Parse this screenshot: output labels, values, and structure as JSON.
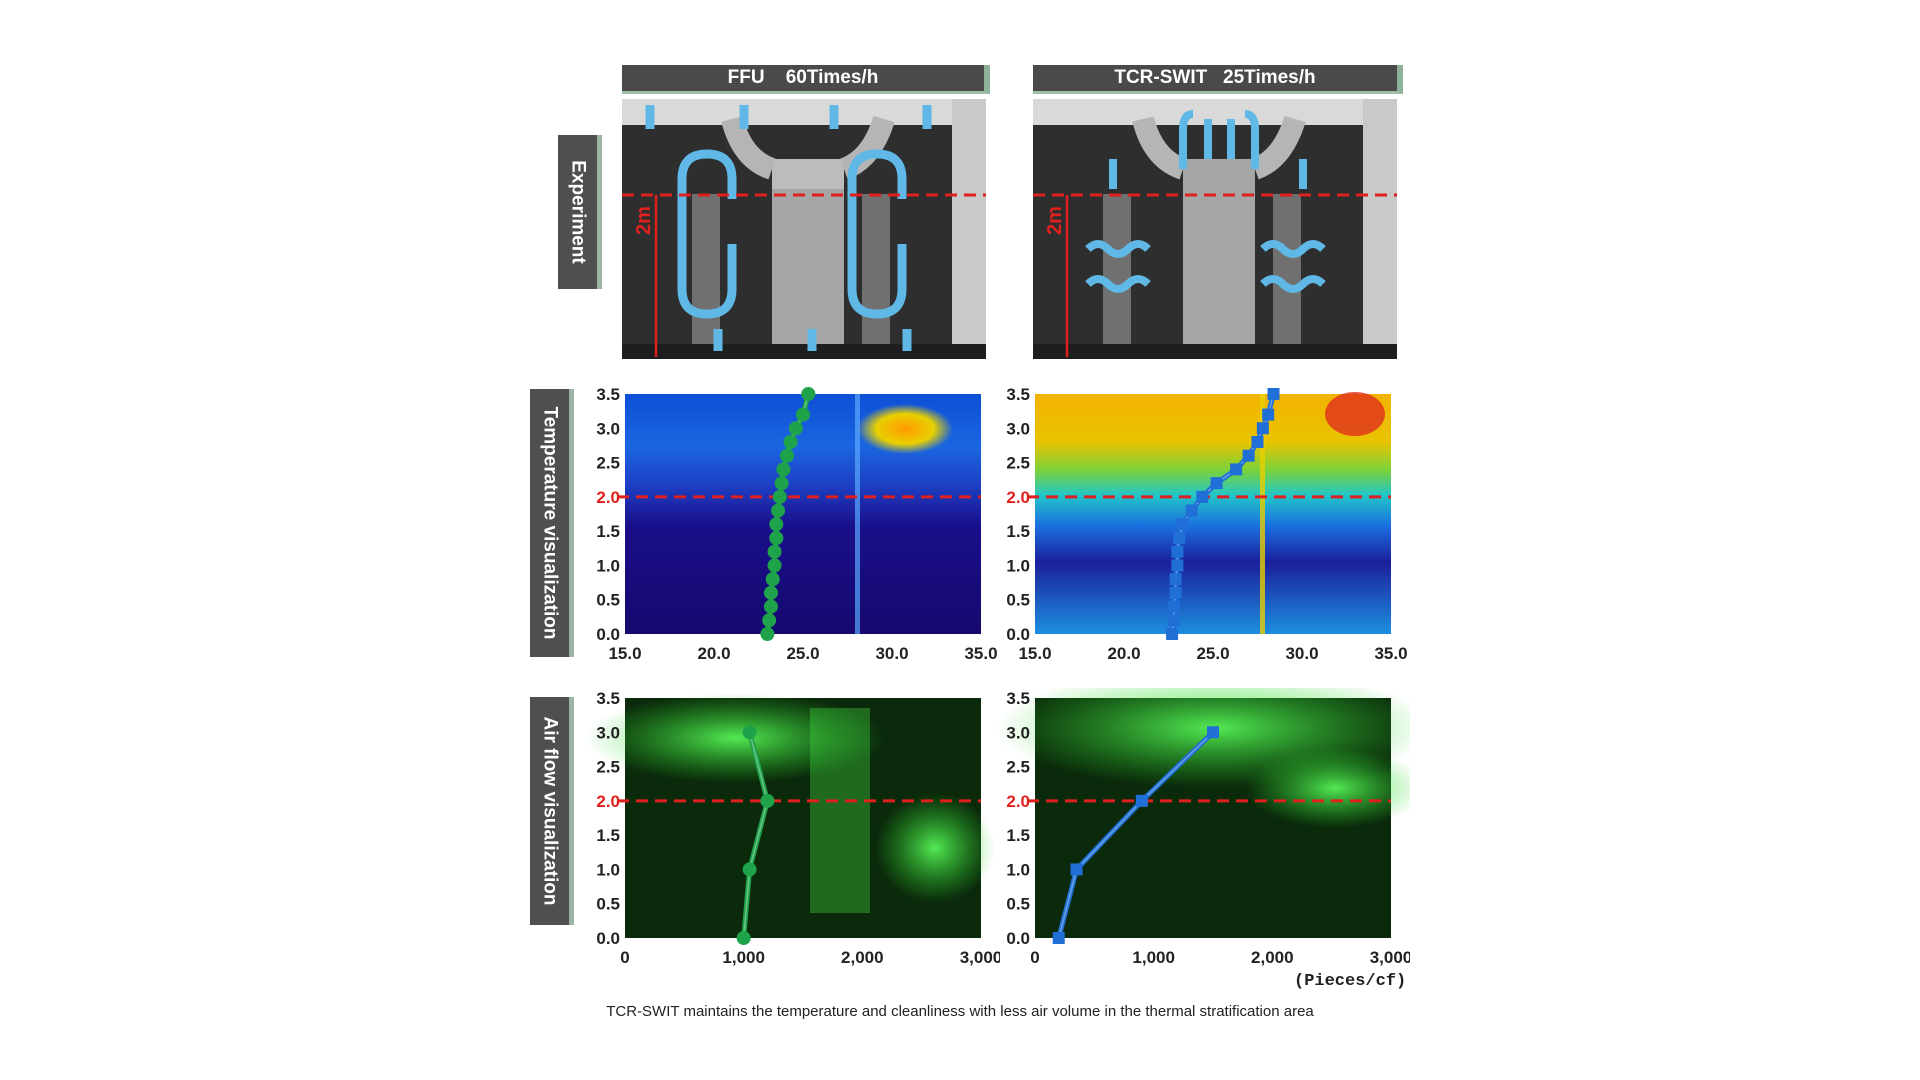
{
  "columns": [
    {
      "title": "FFU    60Times/h"
    },
    {
      "title": "TCR-SWIT   25Times/h"
    }
  ],
  "row_labels": {
    "experiment": "Experiment",
    "temperature": "Temperature visualization",
    "airflow": "Air flow visualization"
  },
  "height_marker": "2m",
  "unit_label": "(Pieces/cf)",
  "caption": "TCR-SWIT maintains the temperature and cleanliness with less air volume in the thermal stratification area",
  "colors": {
    "ffu_series": "#1fa34a",
    "tcr_series": "#1f6fd6",
    "reference_line": "#e0201c",
    "arrow": "#5fb8e6"
  },
  "chart_data": [
    {
      "type": "line",
      "panel": "FFU temperature visualization",
      "x": [
        23.0,
        23.1,
        23.2,
        23.2,
        23.3,
        23.4,
        23.4,
        23.5,
        23.5,
        23.6,
        23.7,
        23.8,
        23.9,
        24.1,
        24.3,
        24.6,
        25.0,
        25.3
      ],
      "y": [
        0.0,
        0.2,
        0.4,
        0.6,
        0.8,
        1.0,
        1.2,
        1.4,
        1.6,
        1.8,
        2.0,
        2.2,
        2.4,
        2.6,
        2.8,
        3.0,
        3.2,
        3.5
      ],
      "xlim": [
        15.0,
        35.0
      ],
      "ylim": [
        0.0,
        3.5
      ],
      "xticks": [
        "15.0",
        "20.0",
        "25.0",
        "30.0",
        "35.0"
      ],
      "yticks": [
        "0.0",
        "0.5",
        "1.0",
        "1.5",
        "2.0",
        "2.5",
        "3.0",
        "3.5"
      ],
      "reference_y": 2.0
    },
    {
      "type": "line",
      "panel": "TCR-SWIT temperature visualization",
      "x": [
        22.7,
        22.8,
        22.8,
        22.9,
        22.9,
        23.0,
        23.0,
        23.1,
        23.3,
        23.8,
        24.4,
        25.2,
        26.3,
        27.0,
        27.5,
        27.8,
        28.1,
        28.4
      ],
      "y": [
        0.0,
        0.2,
        0.4,
        0.6,
        0.8,
        1.0,
        1.2,
        1.4,
        1.6,
        1.8,
        2.0,
        2.2,
        2.4,
        2.6,
        2.8,
        3.0,
        3.2,
        3.5
      ],
      "xlim": [
        15.0,
        35.0
      ],
      "ylim": [
        0.0,
        3.5
      ],
      "xticks": [
        "15.0",
        "20.0",
        "25.0",
        "30.0",
        "35.0"
      ],
      "yticks": [
        "0.0",
        "0.5",
        "1.0",
        "1.5",
        "2.0",
        "2.5",
        "3.0",
        "3.5"
      ],
      "reference_y": 2.0
    },
    {
      "type": "line",
      "panel": "FFU air flow visualization",
      "x": [
        1000,
        1050,
        1200,
        1050
      ],
      "y": [
        0.0,
        1.0,
        2.0,
        3.0
      ],
      "xlim": [
        0,
        3000
      ],
      "ylim": [
        0.0,
        3.5
      ],
      "xticks": [
        "0",
        "1,000",
        "2,000",
        "3,000"
      ],
      "yticks": [
        "0.0",
        "0.5",
        "1.0",
        "1.5",
        "2.0",
        "2.5",
        "3.0",
        "3.5"
      ],
      "reference_y": 2.0
    },
    {
      "type": "line",
      "panel": "TCR-SWIT air flow visualization",
      "x": [
        200,
        350,
        900,
        1500
      ],
      "y": [
        0.0,
        1.0,
        2.0,
        3.0
      ],
      "xlim": [
        0,
        3000
      ],
      "ylim": [
        0.0,
        3.5
      ],
      "xticks": [
        "0",
        "1,000",
        "2,000",
        "3,000"
      ],
      "yticks": [
        "0.0",
        "0.5",
        "1.0",
        "1.5",
        "2.0",
        "2.5",
        "3.0",
        "3.5"
      ],
      "reference_y": 2.0
    }
  ]
}
